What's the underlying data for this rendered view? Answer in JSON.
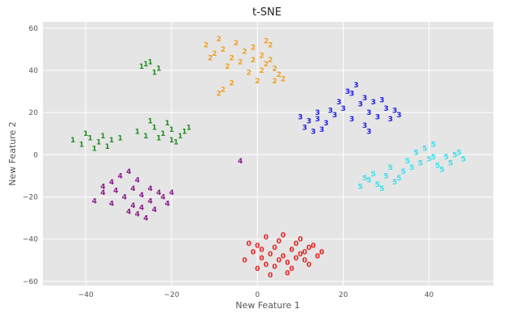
{
  "chart_data": {
    "type": "scatter",
    "title": "t-SNE",
    "xlabel": "New Feature 1",
    "ylabel": "New Feature 2",
    "xlim": [
      -50,
      55
    ],
    "ylim": [
      -62,
      63
    ],
    "xticks": [
      -40,
      -20,
      0,
      20,
      40
    ],
    "yticks": [
      -60,
      -40,
      -20,
      0,
      20,
      40,
      60
    ],
    "grid": true,
    "background": "#e5e5e5",
    "grid_color": "#ffffff",
    "series": [
      {
        "label": "0",
        "color": "#e81c1c",
        "points": [
          [
            -3,
            -50
          ],
          [
            -1,
            -46
          ],
          [
            0,
            -43
          ],
          [
            1,
            -49
          ],
          [
            2,
            -52
          ],
          [
            3,
            -47
          ],
          [
            4,
            -44
          ],
          [
            5,
            -41
          ],
          [
            6,
            -48
          ],
          [
            7,
            -51
          ],
          [
            8,
            -45
          ],
          [
            9,
            -42
          ],
          [
            10,
            -47
          ],
          [
            11,
            -50
          ],
          [
            12,
            -44
          ],
          [
            13,
            -43
          ],
          [
            14,
            -48
          ],
          [
            15,
            -46
          ],
          [
            0,
            -54
          ],
          [
            2,
            -39
          ],
          [
            4,
            -53
          ],
          [
            6,
            -38
          ],
          [
            8,
            -54
          ],
          [
            10,
            -40
          ],
          [
            12,
            -52
          ],
          [
            -2,
            -42
          ],
          [
            3,
            -57
          ],
          [
            7,
            -56
          ],
          [
            1,
            -45
          ],
          [
            5,
            -50
          ],
          [
            9,
            -49
          ],
          [
            11,
            -46
          ]
        ]
      },
      {
        "label": "1",
        "color": "#228b22",
        "points": [
          [
            -43,
            7
          ],
          [
            -41,
            5
          ],
          [
            -39,
            8
          ],
          [
            -37,
            6
          ],
          [
            -36,
            9
          ],
          [
            -34,
            7
          ],
          [
            -32,
            8
          ],
          [
            -38,
            3
          ],
          [
            -40,
            10
          ],
          [
            -35,
            4
          ],
          [
            -24,
            13
          ],
          [
            -22,
            10
          ],
          [
            -20,
            12
          ],
          [
            -18,
            9
          ],
          [
            -21,
            15
          ],
          [
            -23,
            8
          ],
          [
            -19,
            6
          ],
          [
            -17,
            11
          ],
          [
            -25,
            16
          ],
          [
            -28,
            11
          ],
          [
            -26,
            9
          ],
          [
            -16,
            13
          ],
          [
            -20,
            7
          ],
          [
            -27,
            42
          ],
          [
            -25,
            44
          ],
          [
            -23,
            41
          ],
          [
            -24,
            39
          ],
          [
            -26,
            43
          ]
        ]
      },
      {
        "label": "2",
        "color": "#f0a020",
        "points": [
          [
            -12,
            52
          ],
          [
            -10,
            48
          ],
          [
            -8,
            50
          ],
          [
            -6,
            46
          ],
          [
            -5,
            53
          ],
          [
            -3,
            49
          ],
          [
            -1,
            51
          ],
          [
            1,
            47
          ],
          [
            2,
            54
          ],
          [
            3,
            45
          ],
          [
            4,
            41
          ],
          [
            5,
            38
          ],
          [
            6,
            36
          ],
          [
            -7,
            42
          ],
          [
            -4,
            44
          ],
          [
            -2,
            39
          ],
          [
            0,
            35
          ],
          [
            -9,
            55
          ],
          [
            -11,
            46
          ],
          [
            2,
            43
          ],
          [
            -6,
            34
          ],
          [
            -9,
            29
          ],
          [
            -8,
            31
          ],
          [
            3,
            52
          ],
          [
            1,
            40
          ],
          [
            -1,
            45
          ],
          [
            4,
            35
          ]
        ]
      },
      {
        "label": "3",
        "color": "#1c1ce8",
        "points": [
          [
            10,
            18
          ],
          [
            12,
            16
          ],
          [
            14,
            20
          ],
          [
            16,
            15
          ],
          [
            18,
            19
          ],
          [
            20,
            22
          ],
          [
            22,
            17
          ],
          [
            24,
            24
          ],
          [
            26,
            20
          ],
          [
            28,
            18
          ],
          [
            30,
            22
          ],
          [
            32,
            21
          ],
          [
            21,
            30
          ],
          [
            23,
            33
          ],
          [
            25,
            27
          ],
          [
            15,
            12
          ],
          [
            13,
            11
          ],
          [
            27,
            25
          ],
          [
            29,
            26
          ],
          [
            19,
            25
          ],
          [
            17,
            21
          ],
          [
            31,
            17
          ],
          [
            25,
            14
          ],
          [
            26,
            11
          ],
          [
            11,
            13
          ],
          [
            22,
            29
          ],
          [
            33,
            19
          ],
          [
            14,
            17
          ]
        ]
      },
      {
        "label": "4",
        "color": "#8b1a8b",
        "points": [
          [
            -38,
            -22
          ],
          [
            -36,
            -18
          ],
          [
            -34,
            -23
          ],
          [
            -33,
            -17
          ],
          [
            -31,
            -20
          ],
          [
            -29,
            -24
          ],
          [
            -27,
            -19
          ],
          [
            -25,
            -22
          ],
          [
            -23,
            -18
          ],
          [
            -21,
            -23
          ],
          [
            -30,
            -27
          ],
          [
            -28,
            -28
          ],
          [
            -26,
            -30
          ],
          [
            -24,
            -26
          ],
          [
            -32,
            -10
          ],
          [
            -30,
            -8
          ],
          [
            -28,
            -12
          ],
          [
            -34,
            -13
          ],
          [
            -36,
            -15
          ],
          [
            -22,
            -20
          ],
          [
            -20,
            -18
          ],
          [
            -29,
            -16
          ],
          [
            -25,
            -16
          ],
          [
            -27,
            -25
          ],
          [
            -4,
            -3
          ]
        ]
      },
      {
        "label": "5",
        "color": "#38e0ec",
        "points": [
          [
            24,
            -15
          ],
          [
            26,
            -12
          ],
          [
            28,
            -14
          ],
          [
            30,
            -10
          ],
          [
            32,
            -13
          ],
          [
            34,
            -8
          ],
          [
            36,
            -6
          ],
          [
            38,
            -4
          ],
          [
            40,
            -2
          ],
          [
            42,
            -5
          ],
          [
            44,
            -1
          ],
          [
            46,
            0
          ],
          [
            48,
            -2
          ],
          [
            37,
            1
          ],
          [
            39,
            3
          ],
          [
            41,
            -1
          ],
          [
            43,
            -7
          ],
          [
            45,
            -4
          ],
          [
            35,
            -3
          ],
          [
            33,
            -11
          ],
          [
            29,
            -16
          ],
          [
            27,
            -9
          ],
          [
            31,
            -6
          ],
          [
            47,
            1
          ],
          [
            41,
            5
          ],
          [
            25,
            -11
          ]
        ]
      }
    ]
  }
}
